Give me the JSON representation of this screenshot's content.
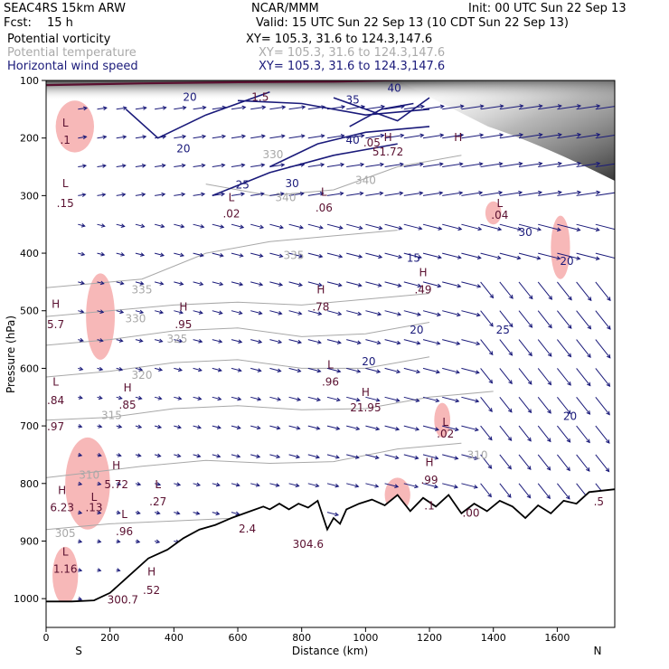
{
  "header": {
    "model": "SEAC4RS 15km ARW",
    "source": "NCAR/MMM",
    "init": "Init: 00 UTC Sun 22 Sep 13",
    "fcst_label": "Fcst:",
    "fcst_value": "15 h",
    "valid": "Valid: 15 UTC Sun 22 Sep 13 (10 CDT Sun 22 Sep 13)",
    "fields": [
      {
        "name": "Potential vorticity",
        "xy": "XY= 105.3, 31.6 to 124.3,147.6",
        "color": "#000000"
      },
      {
        "name": "Potential temperature",
        "xy": "XY= 105.3, 31.6 to 124.3,147.6",
        "color": "#aaaaaa"
      },
      {
        "name": "Horizontal wind speed",
        "xy": "XY= 105.3, 31.6 to 124.3,147.6",
        "color": "#1a1a7a"
      }
    ]
  },
  "chart_data": {
    "type": "cross-section",
    "xlabel": "Distance (km)",
    "ylabel": "Pressure (hPa)",
    "xlim": [
      0,
      1780
    ],
    "ylim": [
      1050,
      100
    ],
    "x_ticks": [
      0,
      200,
      400,
      600,
      800,
      1000,
      1200,
      1400,
      1600
    ],
    "y_ticks": [
      100,
      200,
      300,
      400,
      500,
      600,
      700,
      800,
      900,
      1000
    ],
    "x_end_labels": [
      "S",
      "N"
    ],
    "colors": {
      "pv_fill": "#f7b8b8",
      "theta": "#a8a8a8",
      "wind": "#1a1a7a",
      "terrain": "#000000",
      "tropopause": "#5a1030"
    },
    "terrain": [
      [
        0,
        1005
      ],
      [
        80,
        1005
      ],
      [
        150,
        1003
      ],
      [
        200,
        990
      ],
      [
        260,
        960
      ],
      [
        320,
        930
      ],
      [
        380,
        915
      ],
      [
        430,
        895
      ],
      [
        480,
        880
      ],
      [
        530,
        872
      ],
      [
        580,
        860
      ],
      [
        630,
        850
      ],
      [
        680,
        840
      ],
      [
        700,
        845
      ],
      [
        730,
        835
      ],
      [
        760,
        845
      ],
      [
        790,
        835
      ],
      [
        820,
        842
      ],
      [
        850,
        830
      ],
      [
        880,
        880
      ],
      [
        900,
        860
      ],
      [
        920,
        870
      ],
      [
        940,
        845
      ],
      [
        980,
        835
      ],
      [
        1020,
        828
      ],
      [
        1060,
        838
      ],
      [
        1100,
        820
      ],
      [
        1140,
        848
      ],
      [
        1180,
        825
      ],
      [
        1220,
        840
      ],
      [
        1260,
        820
      ],
      [
        1300,
        852
      ],
      [
        1340,
        835
      ],
      [
        1380,
        848
      ],
      [
        1420,
        830
      ],
      [
        1460,
        840
      ],
      [
        1500,
        860
      ],
      [
        1540,
        838
      ],
      [
        1580,
        852
      ],
      [
        1620,
        830
      ],
      [
        1660,
        835
      ],
      [
        1700,
        815
      ],
      [
        1780,
        810
      ]
    ],
    "theta_contours": [
      {
        "label": "305",
        "points": [
          [
            0,
            880
          ],
          [
            200,
            870
          ],
          [
            400,
            865
          ],
          [
            600,
            860
          ]
        ]
      },
      {
        "label": "310",
        "points": [
          [
            0,
            790
          ],
          [
            150,
            780
          ],
          [
            300,
            770
          ],
          [
            500,
            760
          ],
          [
            700,
            765
          ],
          [
            900,
            762
          ],
          [
            1100,
            740
          ],
          [
            1300,
            730
          ]
        ]
      },
      {
        "label": "315",
        "points": [
          [
            0,
            690
          ],
          [
            200,
            685
          ],
          [
            400,
            670
          ],
          [
            600,
            665
          ],
          [
            800,
            672
          ],
          [
            1000,
            670
          ],
          [
            1200,
            650
          ],
          [
            1400,
            640
          ]
        ]
      },
      {
        "label": "320",
        "points": [
          [
            0,
            615
          ],
          [
            200,
            605
          ],
          [
            400,
            590
          ],
          [
            600,
            585
          ],
          [
            800,
            600
          ],
          [
            1000,
            600
          ],
          [
            1200,
            580
          ]
        ]
      },
      {
        "label": "325",
        "points": [
          [
            0,
            560
          ],
          [
            200,
            550
          ],
          [
            400,
            535
          ],
          [
            600,
            530
          ],
          [
            800,
            545
          ],
          [
            1000,
            540
          ],
          [
            1200,
            520
          ]
        ]
      },
      {
        "label": "330",
        "points": [
          [
            0,
            510
          ],
          [
            200,
            500
          ],
          [
            400,
            490
          ],
          [
            600,
            485
          ],
          [
            800,
            490
          ],
          [
            1000,
            480
          ],
          [
            1200,
            470
          ]
        ]
      },
      {
        "label": "335",
        "points": [
          [
            0,
            460
          ],
          [
            300,
            445
          ],
          [
            500,
            400
          ],
          [
            700,
            380
          ],
          [
            900,
            370
          ],
          [
            1100,
            360
          ]
        ]
      },
      {
        "label": "340",
        "points": [
          [
            500,
            280
          ],
          [
            700,
            300
          ],
          [
            900,
            290
          ],
          [
            1100,
            250
          ],
          [
            1300,
            230
          ]
        ]
      }
    ],
    "wind_speed_contours": [
      {
        "label": "15",
        "points": [
          [
            600,
            135
          ],
          [
            800,
            140
          ],
          [
            1000,
            160
          ],
          [
            1200,
            150
          ]
        ]
      },
      {
        "label": "20",
        "points": [
          [
            250,
            150
          ],
          [
            350,
            200
          ],
          [
            500,
            160
          ],
          [
            700,
            120
          ]
        ]
      },
      {
        "label": "25",
        "points": [
          [
            520,
            300
          ],
          [
            700,
            260
          ],
          [
            900,
            230
          ],
          [
            1100,
            210
          ]
        ]
      },
      {
        "label": "30",
        "points": [
          [
            700,
            250
          ],
          [
            850,
            210
          ],
          [
            1000,
            190
          ],
          [
            1200,
            180
          ]
        ]
      },
      {
        "label": "35",
        "points": [
          [
            900,
            130
          ],
          [
            1000,
            150
          ],
          [
            1100,
            170
          ],
          [
            1200,
            130
          ]
        ]
      },
      {
        "label": "40",
        "points": [
          [
            950,
            180
          ],
          [
            1050,
            150
          ],
          [
            1150,
            140
          ]
        ]
      }
    ],
    "pv_blobs": [
      {
        "cx": 90,
        "cy": 180,
        "rx": 60,
        "ry": 45
      },
      {
        "cx": 170,
        "cy": 510,
        "rx": 45,
        "ry": 75
      },
      {
        "cx": 130,
        "cy": 800,
        "rx": 70,
        "ry": 80
      },
      {
        "cx": 60,
        "cy": 960,
        "rx": 40,
        "ry": 50
      },
      {
        "cx": 1610,
        "cy": 390,
        "rx": 30,
        "ry": 55
      },
      {
        "cx": 1240,
        "cy": 690,
        "rx": 25,
        "ry": 30
      },
      {
        "cx": 1100,
        "cy": 820,
        "rx": 40,
        "ry": 30
      },
      {
        "cx": 1400,
        "cy": 330,
        "rx": 25,
        "ry": 20
      }
    ],
    "annotations": [
      {
        "text": "L",
        "x": 60,
        "y": 285
      },
      {
        "text": ".15",
        "x": 60,
        "y": 320
      },
      {
        "text": "L",
        "x": 60,
        "y": 180
      },
      {
        "text": ".1",
        "x": 60,
        "y": 210
      },
      {
        "text": "H",
        "x": 30,
        "y": 495
      },
      {
        "text": "5.7",
        "x": 30,
        "y": 530
      },
      {
        "text": "L",
        "x": 30,
        "y": 630
      },
      {
        "text": ".84",
        "x": 30,
        "y": 662
      },
      {
        "text": ".97",
        "x": 30,
        "y": 708
      },
      {
        "text": "H",
        "x": 255,
        "y": 640
      },
      {
        "text": ".85",
        "x": 255,
        "y": 670
      },
      {
        "text": "H",
        "x": 430,
        "y": 500
      },
      {
        "text": ".95",
        "x": 430,
        "y": 530
      },
      {
        "text": "H",
        "x": 220,
        "y": 775
      },
      {
        "text": "5.72",
        "x": 220,
        "y": 808
      },
      {
        "text": "H",
        "x": 50,
        "y": 818
      },
      {
        "text": "6.23",
        "x": 50,
        "y": 848
      },
      {
        "text": "L",
        "x": 150,
        "y": 830
      },
      {
        "text": ".13",
        "x": 150,
        "y": 848
      },
      {
        "text": "L",
        "x": 350,
        "y": 808
      },
      {
        "text": ".27",
        "x": 350,
        "y": 838
      },
      {
        "text": "L",
        "x": 245,
        "y": 860
      },
      {
        "text": ".96",
        "x": 245,
        "y": 890
      },
      {
        "text": "L",
        "x": 60,
        "y": 925
      },
      {
        "text": "1.16",
        "x": 60,
        "y": 955
      },
      {
        "text": "H",
        "x": 330,
        "y": 960
      },
      {
        "text": ".52",
        "x": 330,
        "y": 992
      },
      {
        "text": "L",
        "x": 580,
        "y": 310
      },
      {
        "text": ".02",
        "x": 580,
        "y": 338
      },
      {
        "text": "L",
        "x": 870,
        "y": 300
      },
      {
        "text": ".06",
        "x": 870,
        "y": 328
      },
      {
        "text": "H",
        "x": 860,
        "y": 470
      },
      {
        "text": ".78",
        "x": 860,
        "y": 500
      },
      {
        "text": "H",
        "x": 1180,
        "y": 440
      },
      {
        "text": ".49",
        "x": 1180,
        "y": 470
      },
      {
        "text": "L",
        "x": 890,
        "y": 600
      },
      {
        "text": ".96",
        "x": 890,
        "y": 630
      },
      {
        "text": "H",
        "x": 1000,
        "y": 648
      },
      {
        "text": "21.95",
        "x": 1000,
        "y": 675
      },
      {
        "text": "H",
        "x": 1070,
        "y": 205
      },
      {
        "text": "51.72",
        "x": 1070,
        "y": 230
      },
      {
        "text": "H",
        "x": 1290,
        "y": 205
      },
      {
        "text": "L",
        "x": 1250,
        "y": 700
      },
      {
        "text": ".02",
        "x": 1250,
        "y": 720
      },
      {
        "text": "H",
        "x": 1200,
        "y": 770
      },
      {
        "text": ".99",
        "x": 1200,
        "y": 800
      },
      {
        "text": ".1",
        "x": 1200,
        "y": 845
      },
      {
        "text": "L",
        "x": 1420,
        "y": 320
      },
      {
        "text": ".04",
        "x": 1420,
        "y": 340
      },
      {
        "text": ".00",
        "x": 1330,
        "y": 858
      },
      {
        "text": ".5",
        "x": 1730,
        "y": 838
      },
      {
        "text": "1.5",
        "x": 670,
        "y": 135
      },
      {
        "text": ".05",
        "x": 1020,
        "y": 215
      },
      {
        "text": "304.6",
        "x": 820,
        "y": 912
      },
      {
        "text": "2.4",
        "x": 630,
        "y": 885
      },
      {
        "text": "300.7",
        "x": 240,
        "y": 1008
      }
    ],
    "contour_labels": [
      {
        "text": "20",
        "x": 450,
        "y": 135
      },
      {
        "text": "20",
        "x": 430,
        "y": 225
      },
      {
        "text": "25",
        "x": 615,
        "y": 288
      },
      {
        "text": "30",
        "x": 770,
        "y": 285
      },
      {
        "text": "35",
        "x": 960,
        "y": 140
      },
      {
        "text": "40",
        "x": 960,
        "y": 210
      },
      {
        "text": "15",
        "x": 1150,
        "y": 415
      },
      {
        "text": "25",
        "x": 1430,
        "y": 540
      },
      {
        "text": "30",
        "x": 1500,
        "y": 370
      },
      {
        "text": "20",
        "x": 1630,
        "y": 420
      },
      {
        "text": "20",
        "x": 1010,
        "y": 595
      },
      {
        "text": "20",
        "x": 1160,
        "y": 540
      },
      {
        "text": "20",
        "x": 1640,
        "y": 690
      },
      {
        "text": "40",
        "x": 1090,
        "y": 120
      }
    ],
    "theta_labels": [
      {
        "text": "335",
        "x": 300,
        "y": 470
      },
      {
        "text": "330",
        "x": 280,
        "y": 520
      },
      {
        "text": "325",
        "x": 410,
        "y": 555
      },
      {
        "text": "320",
        "x": 300,
        "y": 618
      },
      {
        "text": "315",
        "x": 205,
        "y": 688
      },
      {
        "text": "310",
        "x": 135,
        "y": 792
      },
      {
        "text": "305",
        "x": 60,
        "y": 893
      },
      {
        "text": "335",
        "x": 775,
        "y": 410
      },
      {
        "text": "340",
        "x": 750,
        "y": 310
      },
      {
        "text": "340",
        "x": 1000,
        "y": 280
      },
      {
        "text": "330",
        "x": 710,
        "y": 235
      },
      {
        "text": "310",
        "x": 1350,
        "y": 757
      }
    ]
  }
}
